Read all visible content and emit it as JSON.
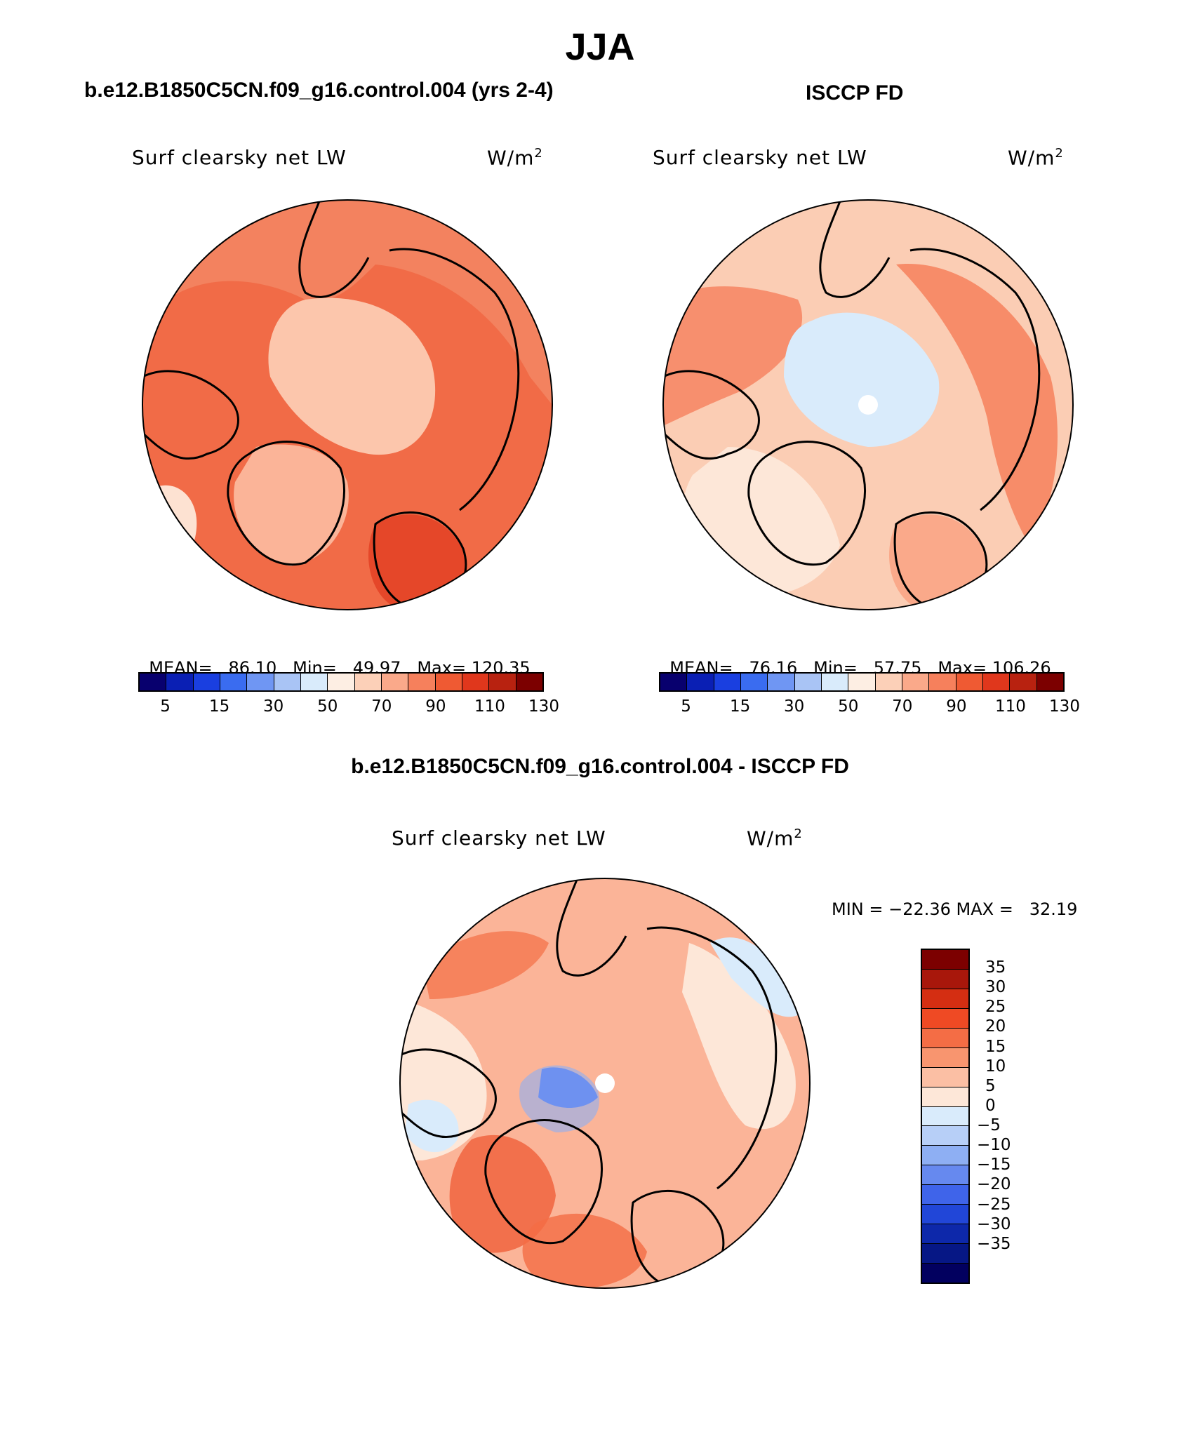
{
  "page": {
    "title": "JJA",
    "panel_model_title": "b.e12.B1850C5CN.f09_g16.control.004 (yrs 2-4)",
    "panel_obs_title": "ISCCP FD",
    "panel_diff_title": "b.e12.B1850C5CN.f09_g16.control.004 - ISCCP FD"
  },
  "panels": [
    {
      "id": "model",
      "variable": "Surf clearsky net LW",
      "units": "W/m",
      "units_sup": "2",
      "mean_label": "MEAN=",
      "mean": "86.10",
      "min_label": "Min=",
      "min": "49.97",
      "max_label": "Max=",
      "max": "120.35",
      "dominant_fill": "#f3825f"
    },
    {
      "id": "obs",
      "variable": "Surf clearsky net LW",
      "units": "W/m",
      "units_sup": "2",
      "mean_label": "MEAN=",
      "mean": "76.16",
      "min_label": "Min=",
      "min": "57.75",
      "max_label": "Max=",
      "max": "106.26",
      "dominant_fill": "#fbcdb4"
    },
    {
      "id": "diff",
      "variable": "Surf clearsky net LW",
      "units": "W/m",
      "units_sup": "2",
      "minmax_text": "MIN = −22.36 MAX =   32.19",
      "dominant_fill": "#fbb498"
    }
  ],
  "colorbar_abs": {
    "colors": [
      "#08006e",
      "#0a1fb4",
      "#1a3fe0",
      "#3a6cf0",
      "#6f96f3",
      "#a9c4f5",
      "#d9ebfb",
      "#fdeee3",
      "#fcd0b8",
      "#faa98a",
      "#f6805c",
      "#ef5a33",
      "#e0371c",
      "#b82210",
      "#7c0000"
    ],
    "ticks": [
      "5",
      "15",
      "30",
      "50",
      "70",
      "90",
      "110",
      "130"
    ]
  },
  "colorbar_diff": {
    "colors": [
      "#7c0000",
      "#a8170b",
      "#d42e12",
      "#ef4a24",
      "#f46d45",
      "#f8956f",
      "#fbbfa4",
      "#fde7d8",
      "#d9ebfb",
      "#b7cff7",
      "#8eaff3",
      "#6689ef",
      "#3f64ea",
      "#2146d8",
      "#0d28aa",
      "#061785",
      "#02005f"
    ],
    "ticks": [
      "35",
      "30",
      "25",
      "20",
      "15",
      "10",
      "5",
      "0",
      "−5",
      "−10",
      "−15",
      "−20",
      "−25",
      "−30",
      "−35"
    ]
  }
}
